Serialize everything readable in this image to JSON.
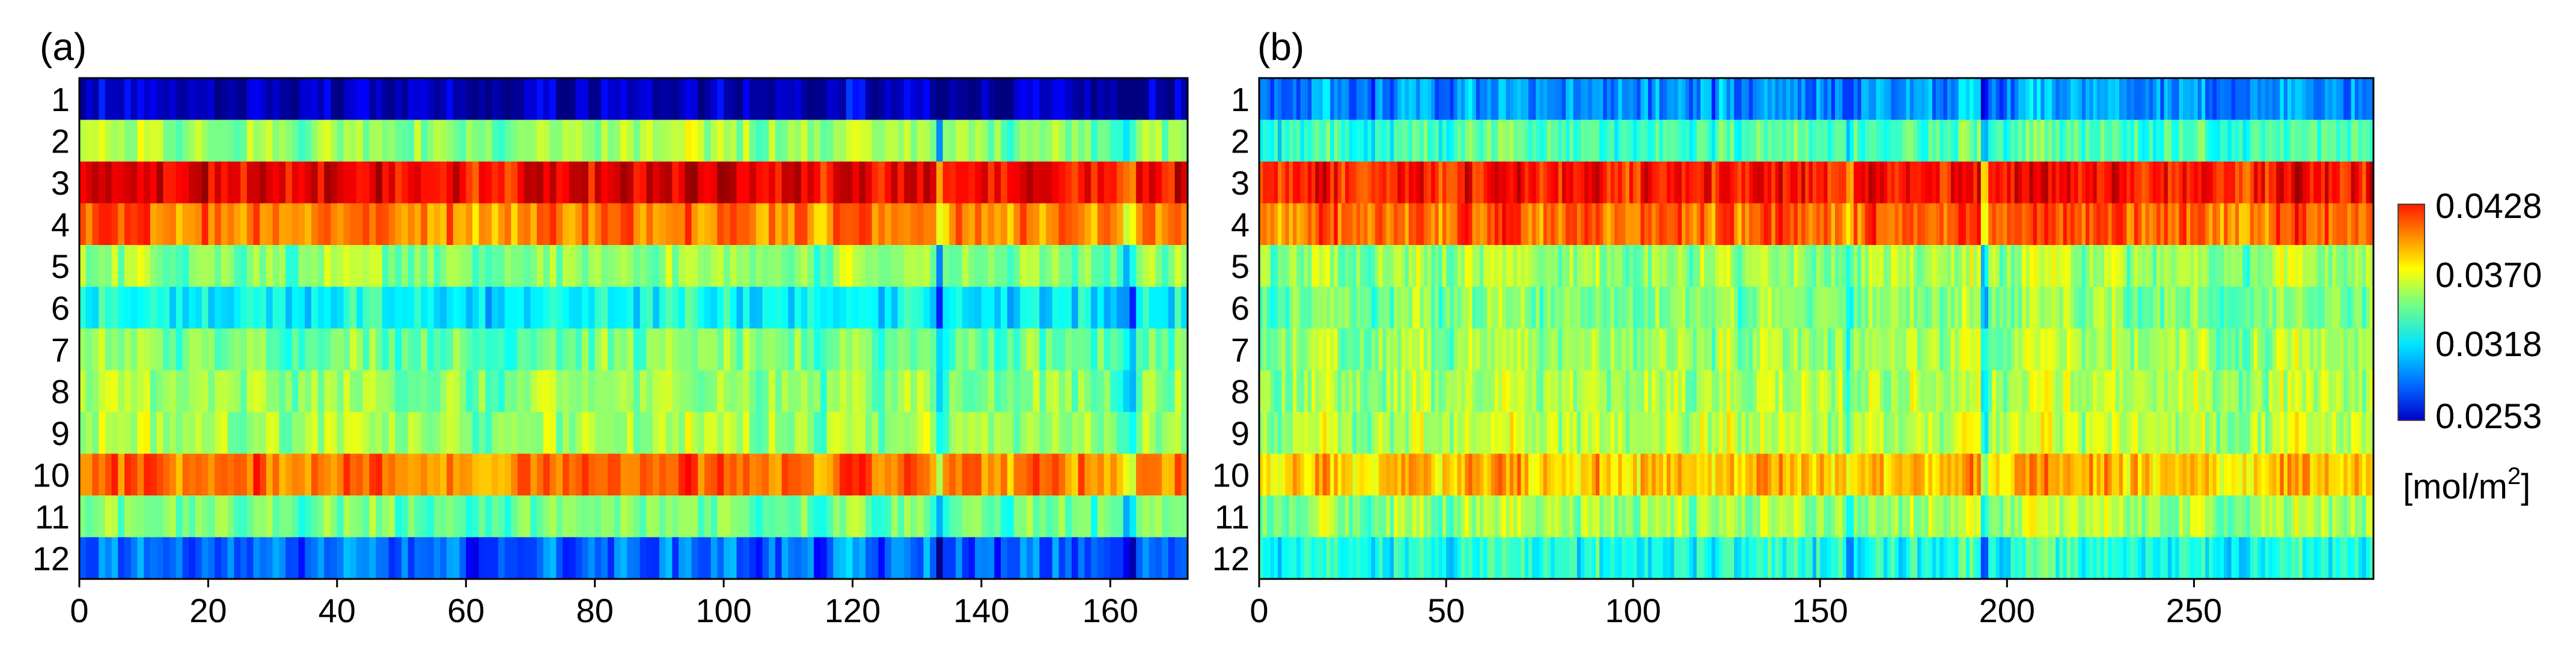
{
  "chart_data": {
    "colorbar": {
      "ticks": [
        0.0428,
        0.037,
        0.0318,
        0.0253
      ],
      "tick_labels": [
        "0.0428",
        "0.0370",
        "0.0318",
        "0.0253"
      ],
      "min": 0.0253,
      "max": 0.0428,
      "unit_main": "[mol/m",
      "unit_sup": "2",
      "unit_end": "]",
      "colormap": "jet"
    },
    "panels": [
      {
        "type": "heatmap",
        "label": "(a)",
        "x_max": 172,
        "x_ticks": [
          0,
          20,
          40,
          60,
          80,
          100,
          120,
          140,
          160
        ],
        "rows": [
          "1",
          "2",
          "3",
          "4",
          "5",
          "6",
          "7",
          "8",
          "9",
          "10",
          "11",
          "12"
        ],
        "row_means": [
          0.0262,
          0.0345,
          0.0408,
          0.0385,
          0.0342,
          0.0318,
          0.0338,
          0.0343,
          0.0346,
          0.0386,
          0.0338,
          0.0292
        ],
        "dips": [
          {
            "x": 133.5,
            "depth": 0.0035
          },
          {
            "x": 150,
            "depth": 0.0018
          },
          {
            "x": 163,
            "depth": 0.002
          }
        ]
      },
      {
        "type": "heatmap",
        "label": "(b)",
        "x_max": 298,
        "x_ticks": [
          0,
          50,
          100,
          150,
          200,
          250
        ],
        "rows": [
          "1",
          "2",
          "3",
          "4",
          "5",
          "6",
          "7",
          "8",
          "9",
          "10",
          "11",
          "12"
        ],
        "row_means": [
          0.0298,
          0.033,
          0.0402,
          0.0388,
          0.0345,
          0.034,
          0.0345,
          0.0347,
          0.035,
          0.0372,
          0.0345,
          0.0322
        ],
        "dips": [
          {
            "x": 121,
            "depth": 0.001
          },
          {
            "x": 158,
            "depth": 0.0025
          },
          {
            "x": 194,
            "depth": 0.0045
          }
        ]
      }
    ]
  }
}
